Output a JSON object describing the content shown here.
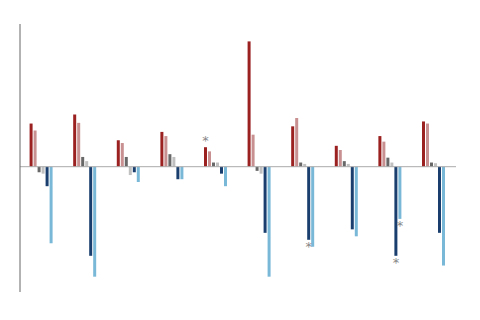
{
  "chart_data": {
    "type": "bar",
    "categories": [
      null,
      null,
      null,
      null,
      null,
      null,
      null,
      null,
      null,
      null
    ],
    "series": [
      {
        "color": "#9b2020",
        "values": [
          0.62,
          0.75,
          0.38,
          0.5,
          0.28,
          1.8,
          0.58,
          0.3,
          0.44,
          0.65
        ]
      },
      {
        "color": "#c89090",
        "values": [
          0.52,
          0.63,
          0.34,
          0.44,
          0.22,
          0.46,
          0.7,
          0.24,
          0.36,
          0.62
        ]
      },
      {
        "color": "#686868",
        "values": [
          -0.08,
          0.14,
          0.14,
          0.18,
          0.06,
          -0.06,
          0.06,
          0.08,
          0.13,
          0.06
        ]
      },
      {
        "color": "#c0c0c0",
        "values": [
          -0.1,
          0.08,
          -0.12,
          0.14,
          0.06,
          -0.1,
          0.04,
          0.04,
          0.06,
          0.05
        ]
      },
      {
        "color": "#1a3f6f",
        "values": [
          -0.28,
          -1.28,
          -0.08,
          -0.18,
          -0.1,
          -0.95,
          -1.05,
          -0.9,
          -1.28,
          -0.95
        ]
      },
      {
        "color": "#7ab8d8",
        "values": [
          -1.1,
          -1.58,
          -0.22,
          -0.18,
          -0.28,
          -1.58,
          -1.15,
          -1.0,
          -0.75,
          -1.42
        ]
      }
    ],
    "ylim": [
      -1.8,
      2.05
    ],
    "grid": false,
    "tick_labels": false,
    "annotations": [
      {
        "text": "*",
        "group": 4,
        "series": 0
      },
      {
        "text": "*",
        "group": 6,
        "series": 4
      },
      {
        "text": "*",
        "group": 8,
        "series": 4
      },
      {
        "text": "*",
        "group": 8,
        "series": 5
      }
    ]
  }
}
